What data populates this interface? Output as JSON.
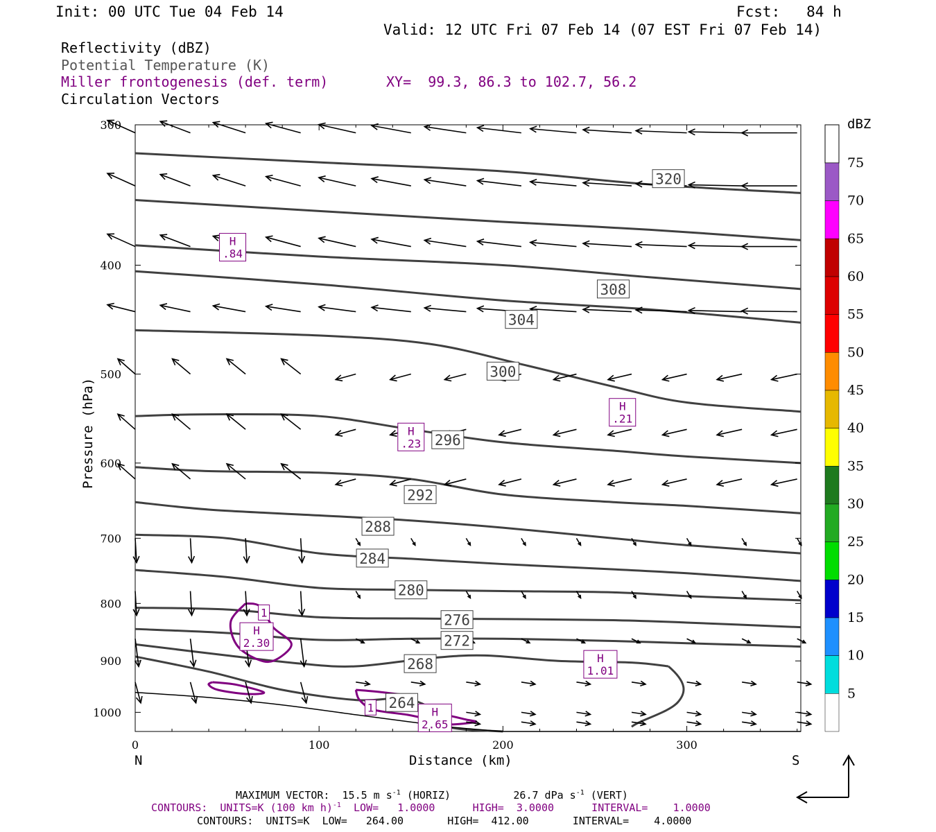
{
  "header": {
    "init": "Init: 00 UTC Tue 04 Feb 14",
    "fcst": "Fcst:   84 h",
    "valid": "Valid: 12 UTC Fri 07 Feb 14 (07 EST Fri 07 Feb 14)"
  },
  "legend": {
    "line1": "Reflectivity (dBZ)",
    "line2": "Potential Temperature (K)",
    "line3": "Miller frontogenesis (def. term)",
    "line3_xy": "XY=  99.3, 86.3 to 102.7, 56.2",
    "line4": "Circulation Vectors"
  },
  "footer": {
    "line1": "MAXIMUM VECTOR:  15.5 m s",
    "line1_sup": "-1",
    "line1_mid": " (HORIZ)          26.7 dPa s",
    "line1_sup2": "-1",
    "line1_end": " (VERT)",
    "line2": "CONTOURS:  UNITS=K (100 km h)",
    "line2_sup": "-1",
    "line2_end": "  LOW=   1.0000      HIGH=  3.0000      INTERVAL=    1.0000",
    "line3": "CONTOURS:  UNITS=K  LOW=   264.00       HIGH=  412.00       INTERVAL=    4.0000"
  },
  "colorbar": {
    "unit": "dBZ",
    "labels": [
      "75",
      "70",
      "65",
      "60",
      "55",
      "50",
      "45",
      "40",
      "35",
      "30",
      "25",
      "20",
      "15",
      "10",
      "5"
    ],
    "colors": [
      "#9b59c6",
      "#ff00ff",
      "#c00000",
      "#dd0000",
      "#ff0000",
      "#ff8c00",
      "#e6b800",
      "#ffff00",
      "#1e7a1e",
      "#22aa22",
      "#00dd00",
      "#0000cc",
      "#1e90ff",
      "#00dddd",
      "#ffffff"
    ]
  },
  "chart_data": {
    "type": "cross-section",
    "xlabel": "Distance (km)",
    "ylabel": "Pressure (hPa)",
    "xlim": [
      0,
      362
    ],
    "ylim": [
      1040,
      300
    ],
    "y_scale": "log",
    "x_ticks": [
      0,
      100,
      200,
      300
    ],
    "y_ticks": [
      300,
      400,
      500,
      600,
      700,
      800,
      900,
      1000
    ],
    "left_end": "N",
    "right_end": "S",
    "theta_contours": [
      {
        "label": "320",
        "points": [
          [
            0,
            318
          ],
          [
            100,
            324
          ],
          [
            200,
            330
          ],
          [
            280,
            339
          ],
          [
            362,
            345
          ]
        ],
        "label_at": [
          290,
          335
        ]
      },
      {
        "label": "",
        "points": [
          [
            0,
            350
          ],
          [
            100,
            358
          ],
          [
            200,
            366
          ],
          [
            280,
            372
          ],
          [
            362,
            380
          ]
        ],
        "label_at": null
      },
      {
        "label": "308",
        "points": [
          [
            0,
            384
          ],
          [
            100,
            393
          ],
          [
            200,
            400
          ],
          [
            280,
            410
          ],
          [
            362,
            420
          ]
        ],
        "label_at": [
          260,
          420
        ]
      },
      {
        "label": "304",
        "points": [
          [
            0,
            405
          ],
          [
            100,
            416
          ],
          [
            200,
            430
          ],
          [
            280,
            438
          ],
          [
            362,
            450
          ]
        ],
        "label_at": [
          210,
          447
        ]
      },
      {
        "label": "300",
        "points": [
          [
            0,
            457
          ],
          [
            100,
            462
          ],
          [
            160,
            470
          ],
          [
            210,
            490
          ],
          [
            260,
            513
          ],
          [
            300,
            530
          ],
          [
            362,
            540
          ]
        ],
        "label_at": [
          200,
          497
        ]
      },
      {
        "label": "296",
        "points": [
          [
            0,
            545
          ],
          [
            40,
            543
          ],
          [
            100,
            545
          ],
          [
            150,
            560
          ],
          [
            200,
            575
          ],
          [
            260,
            585
          ],
          [
            300,
            592
          ],
          [
            362,
            600
          ]
        ],
        "label_at": [
          170,
          572
        ]
      },
      {
        "label": "292",
        "points": [
          [
            0,
            605
          ],
          [
            40,
            610
          ],
          [
            100,
            612
          ],
          [
            150,
            620
          ],
          [
            200,
            640
          ],
          [
            260,
            650
          ],
          [
            300,
            655
          ],
          [
            362,
            665
          ]
        ],
        "label_at": [
          155,
          640
        ]
      },
      {
        "label": "288",
        "points": [
          [
            0,
            650
          ],
          [
            40,
            660
          ],
          [
            100,
            668
          ],
          [
            150,
            675
          ],
          [
            200,
            685
          ],
          [
            260,
            700
          ],
          [
            300,
            710
          ],
          [
            362,
            722
          ]
        ],
        "label_at": [
          132,
          683
        ]
      },
      {
        "label": "284",
        "points": [
          [
            0,
            695
          ],
          [
            50,
            700
          ],
          [
            100,
            722
          ],
          [
            150,
            730
          ],
          [
            200,
            738
          ],
          [
            260,
            746
          ],
          [
            300,
            752
          ],
          [
            362,
            764
          ]
        ],
        "label_at": [
          129,
          729
        ]
      },
      {
        "label": "280",
        "points": [
          [
            0,
            747
          ],
          [
            50,
            758
          ],
          [
            100,
            775
          ],
          [
            150,
            778
          ],
          [
            200,
            780
          ],
          [
            260,
            782
          ],
          [
            300,
            788
          ],
          [
            362,
            795
          ]
        ],
        "label_at": [
          150,
          778
        ]
      },
      {
        "label": "276",
        "points": [
          [
            0,
            807
          ],
          [
            50,
            810
          ],
          [
            100,
            823
          ],
          [
            150,
            825
          ],
          [
            200,
            826
          ],
          [
            260,
            828
          ],
          [
            300,
            832
          ],
          [
            362,
            840
          ]
        ],
        "label_at": [
          175,
          827
        ]
      },
      {
        "label": "272",
        "points": [
          [
            0,
            843
          ],
          [
            50,
            850
          ],
          [
            100,
            862
          ],
          [
            150,
            860
          ],
          [
            200,
            860
          ],
          [
            260,
            864
          ],
          [
            300,
            868
          ],
          [
            362,
            874
          ]
        ],
        "label_at": [
          175,
          863
        ]
      },
      {
        "label": "268",
        "points": [
          [
            0,
            870
          ],
          [
            50,
            890
          ],
          [
            90,
            905
          ],
          [
            120,
            910
          ],
          [
            160,
            895
          ],
          [
            190,
            890
          ],
          [
            230,
            900
          ],
          [
            270,
            903
          ],
          [
            290,
            910
          ]
        ],
        "label_at": [
          155,
          905
        ]
      },
      {
        "label": "264",
        "points": [
          [
            0,
            892
          ],
          [
            40,
            920
          ],
          [
            80,
            955
          ],
          [
            120,
            975
          ],
          [
            145,
            972
          ],
          [
            160,
            990
          ],
          [
            170,
            1030
          ],
          [
            200,
            1040
          ]
        ],
        "label_at": [
          145,
          980
        ]
      }
    ],
    "frontogenesis_contours": [
      {
        "label": "1",
        "level": 1
      },
      {
        "label": "1",
        "level": 1
      }
    ],
    "frontogenesis_maxima": [
      {
        "label": "H",
        "value": ".84",
        "x": 53,
        "p": 385
      },
      {
        "label": "H",
        "value": ".21",
        "x": 265,
        "p": 540
      },
      {
        "label": "H",
        "value": ".23",
        "x": 150,
        "p": 568
      },
      {
        "label": "H",
        "value": "2.30",
        "x": 66,
        "p": 855
      },
      {
        "label": "H",
        "value": "1.01",
        "x": 253,
        "p": 905
      },
      {
        "label": "H",
        "value": "2.65",
        "x": 163,
        "p": 1010
      }
    ]
  }
}
